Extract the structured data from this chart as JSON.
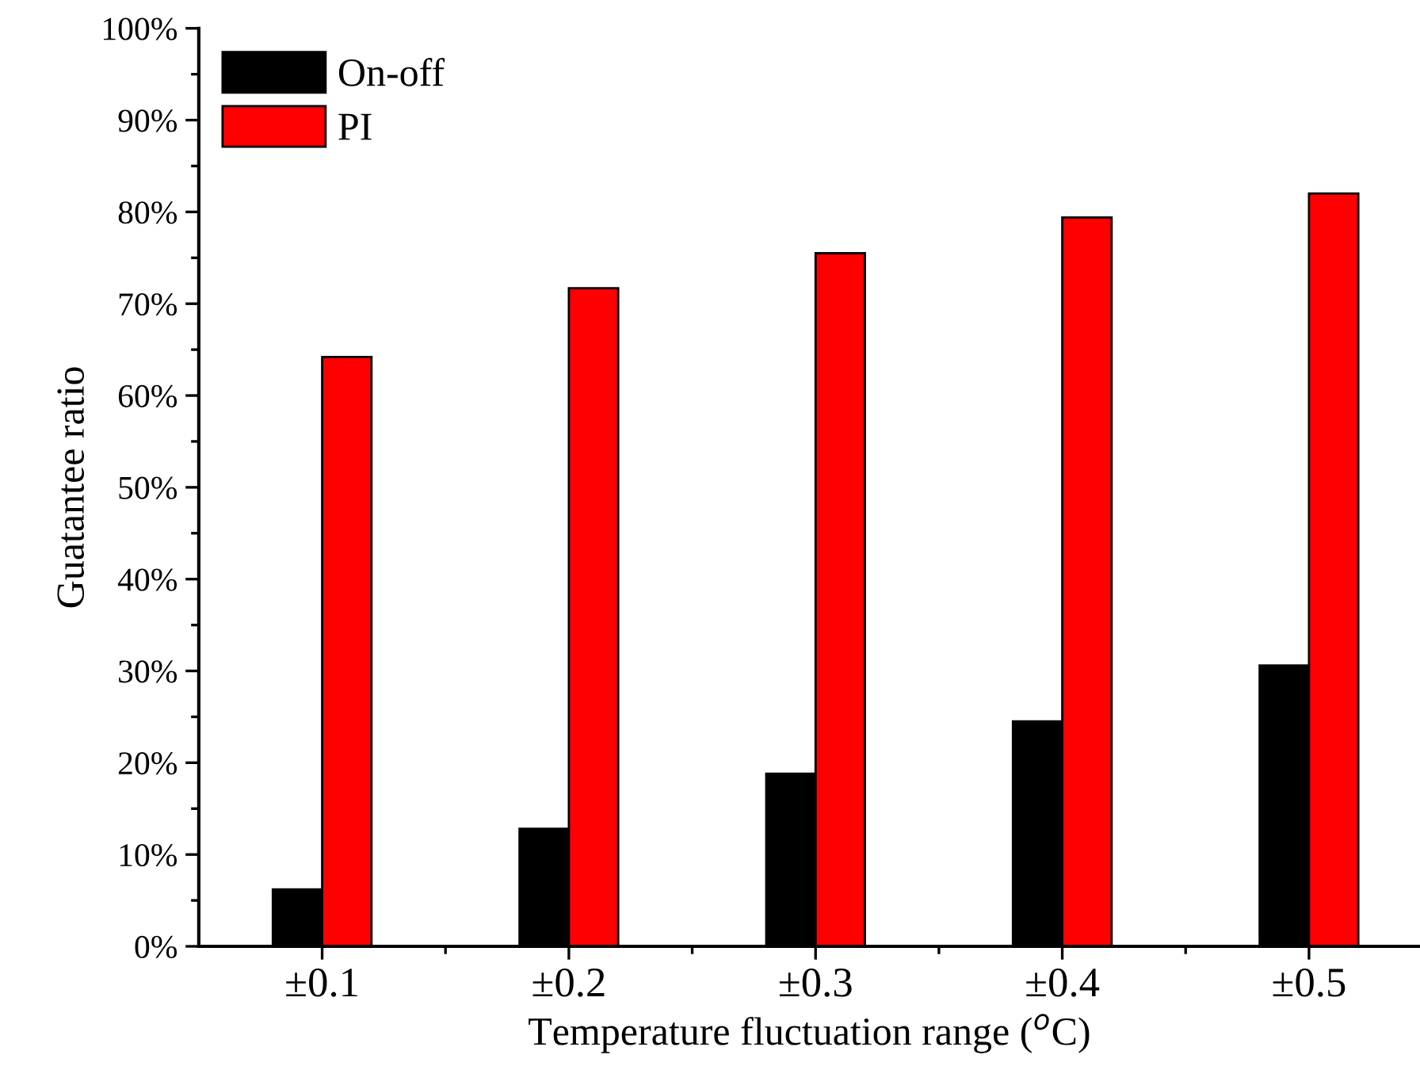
{
  "chart_data": {
    "type": "bar",
    "xlabel": "Temperature fluctuation range ($^{o}$C)",
    "ylabel": "Guatantee ratio",
    "categories": [
      "±0.1",
      "±0.2",
      "±0.3",
      "±0.4",
      "±0.5"
    ],
    "series": [
      {
        "name": "On-off",
        "color": "#000000",
        "values": [
          6.2,
          12.8,
          18.8,
          24.5,
          30.6
        ]
      },
      {
        "name": "PI",
        "color": "#ff0000",
        "values": [
          64.2,
          71.7,
          75.5,
          79.4,
          82.0
        ]
      }
    ],
    "ylim": [
      0,
      100
    ],
    "yticks": [
      {
        "value": 0,
        "label": "0%"
      },
      {
        "value": 10,
        "label": "10%"
      },
      {
        "value": 20,
        "label": "20%"
      },
      {
        "value": 30,
        "label": "30%"
      },
      {
        "value": 40,
        "label": "40%"
      },
      {
        "value": 50,
        "label": "50%"
      },
      {
        "value": 60,
        "label": "60%"
      },
      {
        "value": 70,
        "label": "70%"
      },
      {
        "value": 80,
        "label": "80%"
      },
      {
        "value": 90,
        "label": "90%"
      },
      {
        "value": 100,
        "label": "100%"
      }
    ],
    "legend": "top left",
    "grid": false
  }
}
